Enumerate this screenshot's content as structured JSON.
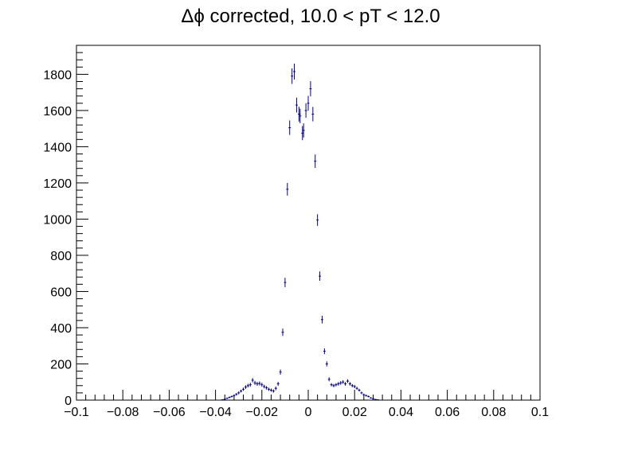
{
  "chart_data": {
    "type": "scatter",
    "title": "Δϕ corrected, 10.0 < pT < 12.0",
    "xlabel": "",
    "ylabel": "",
    "xlim": [
      -0.1,
      0.1
    ],
    "ylim": [
      0,
      1960
    ],
    "grid": false,
    "x_ticks": [
      "−0.1",
      "−0.08",
      "−0.06",
      "−0.04",
      "−0.02",
      "0",
      "0.02",
      "0.04",
      "0.06",
      "0.08",
      "0.1"
    ],
    "x_tick_values": [
      -0.1,
      -0.08,
      -0.06,
      -0.04,
      -0.02,
      0,
      0.02,
      0.04,
      0.06,
      0.08,
      0.1
    ],
    "y_ticks": [
      "0",
      "200",
      "400",
      "600",
      "800",
      "1000",
      "1200",
      "1400",
      "1600",
      "1800"
    ],
    "y_tick_values": [
      0,
      200,
      400,
      600,
      800,
      1000,
      1200,
      1400,
      1600,
      1800
    ],
    "marker_color": "#000080",
    "series": [
      {
        "points": [
          {
            "x": -0.037,
            "y": 2,
            "err": 2
          },
          {
            "x": -0.036,
            "y": 5,
            "err": 3
          },
          {
            "x": -0.035,
            "y": 10,
            "err": 4
          },
          {
            "x": -0.034,
            "y": 15,
            "err": 5
          },
          {
            "x": -0.033,
            "y": 20,
            "err": 5
          },
          {
            "x": -0.032,
            "y": 25,
            "err": 6
          },
          {
            "x": -0.031,
            "y": 32,
            "err": 7
          },
          {
            "x": -0.03,
            "y": 40,
            "err": 8
          },
          {
            "x": -0.029,
            "y": 50,
            "err": 8
          },
          {
            "x": -0.028,
            "y": 60,
            "err": 9
          },
          {
            "x": -0.027,
            "y": 72,
            "err": 10
          },
          {
            "x": -0.026,
            "y": 80,
            "err": 10
          },
          {
            "x": -0.025,
            "y": 85,
            "err": 11
          },
          {
            "x": -0.024,
            "y": 110,
            "err": 12
          },
          {
            "x": -0.023,
            "y": 95,
            "err": 11
          },
          {
            "x": -0.022,
            "y": 90,
            "err": 11
          },
          {
            "x": -0.021,
            "y": 92,
            "err": 11
          },
          {
            "x": -0.02,
            "y": 85,
            "err": 11
          },
          {
            "x": -0.019,
            "y": 75,
            "err": 10
          },
          {
            "x": -0.018,
            "y": 68,
            "err": 10
          },
          {
            "x": -0.017,
            "y": 60,
            "err": 9
          },
          {
            "x": -0.016,
            "y": 55,
            "err": 9
          },
          {
            "x": -0.015,
            "y": 50,
            "err": 9
          },
          {
            "x": -0.014,
            "y": 65,
            "err": 10
          },
          {
            "x": -0.013,
            "y": 90,
            "err": 11
          },
          {
            "x": -0.012,
            "y": 155,
            "err": 14
          },
          {
            "x": -0.011,
            "y": 375,
            "err": 20
          },
          {
            "x": -0.01,
            "y": 650,
            "err": 26
          },
          {
            "x": -0.009,
            "y": 1165,
            "err": 35
          },
          {
            "x": -0.008,
            "y": 1505,
            "err": 40
          },
          {
            "x": -0.007,
            "y": 1790,
            "err": 43
          },
          {
            "x": -0.006,
            "y": 1815,
            "err": 44
          },
          {
            "x": -0.005,
            "y": 1630,
            "err": 41
          },
          {
            "x": -0.004,
            "y": 1580,
            "err": 41
          },
          {
            "x": -0.0035,
            "y": 1570,
            "err": 40
          },
          {
            "x": -0.0025,
            "y": 1475,
            "err": 39
          },
          {
            "x": -0.002,
            "y": 1490,
            "err": 39
          },
          {
            "x": -0.001,
            "y": 1600,
            "err": 40
          },
          {
            "x": 0.0,
            "y": 1640,
            "err": 41
          },
          {
            "x": 0.001,
            "y": 1720,
            "err": 42
          },
          {
            "x": 0.002,
            "y": 1580,
            "err": 40
          },
          {
            "x": 0.003,
            "y": 1320,
            "err": 37
          },
          {
            "x": 0.004,
            "y": 995,
            "err": 32
          },
          {
            "x": 0.005,
            "y": 685,
            "err": 26
          },
          {
            "x": 0.006,
            "y": 445,
            "err": 21
          },
          {
            "x": 0.007,
            "y": 270,
            "err": 16
          },
          {
            "x": 0.008,
            "y": 200,
            "err": 14
          },
          {
            "x": 0.009,
            "y": 115,
            "err": 11
          },
          {
            "x": 0.01,
            "y": 85,
            "err": 9
          },
          {
            "x": 0.011,
            "y": 80,
            "err": 9
          },
          {
            "x": 0.012,
            "y": 85,
            "err": 9
          },
          {
            "x": 0.013,
            "y": 90,
            "err": 10
          },
          {
            "x": 0.014,
            "y": 95,
            "err": 10
          },
          {
            "x": 0.015,
            "y": 100,
            "err": 10
          },
          {
            "x": 0.016,
            "y": 90,
            "err": 10
          },
          {
            "x": 0.017,
            "y": 105,
            "err": 10
          },
          {
            "x": 0.018,
            "y": 90,
            "err": 10
          },
          {
            "x": 0.019,
            "y": 80,
            "err": 9
          },
          {
            "x": 0.02,
            "y": 75,
            "err": 9
          },
          {
            "x": 0.021,
            "y": 65,
            "err": 8
          },
          {
            "x": 0.022,
            "y": 55,
            "err": 8
          },
          {
            "x": 0.023,
            "y": 40,
            "err": 7
          },
          {
            "x": 0.024,
            "y": 30,
            "err": 6
          },
          {
            "x": 0.025,
            "y": 25,
            "err": 5
          },
          {
            "x": 0.026,
            "y": 20,
            "err": 5
          },
          {
            "x": 0.027,
            "y": 12,
            "err": 4
          },
          {
            "x": 0.028,
            "y": 8,
            "err": 3
          },
          {
            "x": 0.029,
            "y": 4,
            "err": 2
          },
          {
            "x": 0.03,
            "y": 2,
            "err": 2
          }
        ]
      }
    ]
  }
}
